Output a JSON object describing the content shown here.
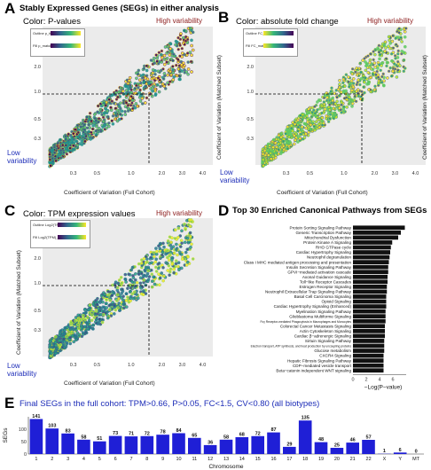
{
  "figure_title": "Stably Expressed Genes (SEGs) in either analysis",
  "panels": {
    "A": {
      "letter": "A",
      "title": "Color: P-values",
      "legend": [
        "Outline p_full",
        "Fill p_match"
      ],
      "legend_ticks": [
        "0.25",
        "0.50",
        "0.75"
      ]
    },
    "B": {
      "letter": "B",
      "title": "Color: absolute fold change",
      "legend": [
        "Outline FC_full",
        "Fill FC_match"
      ],
      "legend_ticks": [
        "1.5",
        "2.0",
        "2.5"
      ]
    },
    "C": {
      "letter": "C",
      "title": "Color: TPM expression values",
      "legend": [
        "Outline Log2(TPM)_full",
        "Fill Log2(TPM)_match"
      ],
      "legend_ticks": [
        "0",
        "5",
        "10"
      ]
    },
    "D": {
      "letter": "D",
      "title": "Top 30 Enriched Canonical Pathways from SEGs"
    },
    "E": {
      "letter": "E",
      "title": "Final SEGs in the full cohort: TPM>0.66, P>0.05, FC<1.5, CV<0.80 (all biotypes)"
    }
  },
  "labels": {
    "high": "High variability",
    "low1": "Low",
    "low2": "variability",
    "xlabel": "Coefficient of Variation (Full Cohort)",
    "ylabel": "Coefficient of Variation (Matched Subset)",
    "scatter_ticks": [
      "0.3",
      "0.5",
      "1.0",
      "2.0",
      "3.0",
      "4.0"
    ]
  },
  "colors": {
    "scatter_bg": "#ebebeb",
    "bar_fill": "#111111",
    "chrom_bar": "#1f1fd6",
    "title_blue": "#1d2db8",
    "high_red": "#8b1a1a"
  },
  "chart_data": [
    {
      "type": "bar",
      "orientation": "horizontal",
      "title": "Top 30 Enriched Canonical Pathways from SEGs",
      "xlabel": "−Log(P−value)",
      "x_ticks": [
        "0",
        "2",
        "4",
        "6"
      ],
      "xlim": [
        0,
        8
      ],
      "categories": [
        "Protein Sorting Signaling Pathway",
        "Generic Transcription Pathway",
        "Mitochondrial Dysfunction",
        "Protein Kinase A Signaling",
        "RHO GTPase cycle",
        "Cardiac Hypertrophy Signaling",
        "Neutrophil degranulation",
        "Class I MHC mediated antigen processing and presentation",
        "Insulin Secretion Signaling Pathway",
        "GPVI−mediated activation cascade",
        "Axonal Guidance Signaling",
        "Toll−like Receptor Cascades",
        "Estrogen Receptor Signaling",
        "Neutrophil Extracellular Trap Signaling Pathway",
        "Basal Cell Carcinoma Signaling",
        "Opioid Signaling",
        "Cardiac Hypertrophy Signaling (Enhanced)",
        "Myelination Signaling Pathway",
        "Glioblastoma Multiforme Signaling",
        "Fcγ Receptor-mediated Phagocytosis in Macrophages and Monocytes",
        "Colorectal Cancer Metastasis Signaling",
        "Actin Cytoskeleton Signaling",
        "Cardiac β−adrenergic Signaling",
        "Sirtuin Signaling Pathway",
        "Electron transport, ATP synthesis, and heat production by uncoupling proteins",
        "Glucose metabolism",
        "CXCR4 Signaling",
        "Hepatic Fibrosis Signaling Pathway",
        "CDP−mediated vesicle transport",
        "Beta−catenin independent WNT signaling"
      ],
      "values": [
        7.8,
        7.2,
        6.8,
        5.9,
        5.7,
        5.6,
        5.5,
        5.4,
        5.3,
        5.3,
        5.2,
        5.2,
        5.1,
        5.1,
        5.0,
        5.0,
        5.0,
        4.9,
        4.9,
        4.9,
        4.8,
        4.8,
        4.8,
        4.7,
        4.7,
        4.7,
        4.6,
        4.6,
        4.6,
        4.6
      ]
    },
    {
      "type": "bar",
      "title": "Final SEGs in the full cohort: TPM>0.66, P>0.05, FC<1.5, CV<0.80 (all biotypes)",
      "xlabel": "Chromosome",
      "ylabel": "SEGs",
      "categories": [
        "1",
        "2",
        "3",
        "4",
        "5",
        "6",
        "7",
        "8",
        "9",
        "10",
        "11",
        "12",
        "13",
        "14",
        "15",
        "16",
        "17",
        "18",
        "19",
        "20",
        "21",
        "22",
        "X",
        "Y",
        "MT"
      ],
      "values": [
        141,
        103,
        83,
        58,
        51,
        73,
        71,
        72,
        78,
        84,
        65,
        36,
        58,
        68,
        72,
        87,
        29,
        135,
        48,
        25,
        46,
        57,
        1,
        6,
        0
      ],
      "ylim": [
        0,
        150
      ]
    }
  ]
}
